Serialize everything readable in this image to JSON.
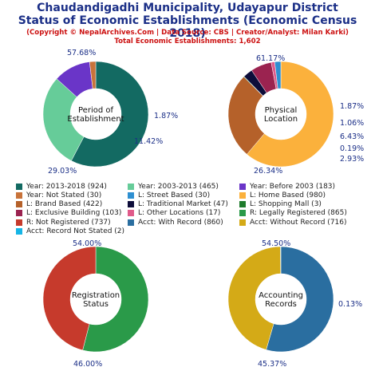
{
  "header": {
    "title_line1": "Chaudandigadhi Municipality, Udayapur District",
    "title_line2": "Status of Economic Establishments (Economic Census 2018)",
    "copyright": "(Copyright © NepalArchives.Com | Data Source: CBS | Creator/Analyst: Milan Karki)",
    "total": "Total Economic Establishments: 1,602"
  },
  "chart_data": [
    {
      "type": "pie",
      "title": "Period of Establishment",
      "center_label": [
        "Period of",
        "Establishment"
      ],
      "slices": [
        {
          "label": "Year: 2013-2018",
          "value": 924,
          "percent_label": "57.68%",
          "color": "#136a62"
        },
        {
          "label": "Year: 2003-2013",
          "value": 465,
          "percent_label": "29.03%",
          "color": "#66cc99"
        },
        {
          "label": "Year: Before 2003",
          "value": 183,
          "percent_label": "11.42%",
          "color": "#6a35c8"
        },
        {
          "label": "Year: Not Stated",
          "value": 30,
          "percent_label": "1.87%",
          "color": "#c8733a"
        }
      ]
    },
    {
      "type": "pie",
      "title": "Physical Location",
      "center_label": [
        "Physical",
        "Location"
      ],
      "slices": [
        {
          "label": "L: Home Based",
          "value": 980,
          "percent_label": "61.17%",
          "color": "#fbb13c"
        },
        {
          "label": "L: Brand Based",
          "value": 422,
          "percent_label": "26.34%",
          "color": "#b5612a"
        },
        {
          "label": "L: Shopping Mall",
          "value": 3,
          "percent_label": "0.19%",
          "color": "#1e7b2c"
        },
        {
          "label": "L: Traditional Market",
          "value": 47,
          "percent_label": "2.93%",
          "color": "#0d0d3a"
        },
        {
          "label": "L: Exclusive Building",
          "value": 103,
          "percent_label": "6.43%",
          "color": "#9b2350"
        },
        {
          "label": "L: Other Locations",
          "value": 17,
          "percent_label": "1.06%",
          "color": "#e05a8a"
        },
        {
          "label": "L: Street Based",
          "value": 30,
          "percent_label": "1.87%",
          "color": "#2e8fd1"
        }
      ]
    },
    {
      "type": "pie",
      "title": "Registration Status",
      "center_label": [
        "Registration",
        "Status"
      ],
      "slices": [
        {
          "label": "R: Legally Registered",
          "value": 865,
          "percent_label": "54.00%",
          "color": "#2a9a49"
        },
        {
          "label": "R: Not Registered",
          "value": 737,
          "percent_label": "46.00%",
          "color": "#c63a2c"
        }
      ]
    },
    {
      "type": "pie",
      "title": "Accounting Records",
      "center_label": [
        "Accounting",
        "Records"
      ],
      "slices": [
        {
          "label": "Acct: With Record",
          "value": 860,
          "percent_label": "54.50%",
          "color": "#2a6ea0"
        },
        {
          "label": "Acct: Without Record",
          "value": 716,
          "percent_label": "45.37%",
          "color": "#d4aa17"
        },
        {
          "label": "Acct: Record Not Stated",
          "value": 2,
          "percent_label": "0.13%",
          "color": "#15b5e6"
        }
      ]
    }
  ],
  "legend": {
    "items": [
      {
        "text": "Year: 2013-2018 (924)",
        "color": "#136a62"
      },
      {
        "text": "Year: 2003-2013 (465)",
        "color": "#66cc99"
      },
      {
        "text": "Year: Before 2003 (183)",
        "color": "#6a35c8"
      },
      {
        "text": "Year: Not Stated (30)",
        "color": "#c8733a"
      },
      {
        "text": "L: Street Based (30)",
        "color": "#2e8fd1"
      },
      {
        "text": "L: Home Based (980)",
        "color": "#fbb13c"
      },
      {
        "text": "L: Brand Based (422)",
        "color": "#b5612a"
      },
      {
        "text": "L: Traditional Market (47)",
        "color": "#0d0d3a"
      },
      {
        "text": "L: Shopping Mall (3)",
        "color": "#1e7b2c"
      },
      {
        "text": "L: Exclusive Building (103)",
        "color": "#9b2350"
      },
      {
        "text": "L: Other Locations (17)",
        "color": "#e05a8a"
      },
      {
        "text": "R: Legally Registered (865)",
        "color": "#2a9a49"
      },
      {
        "text": "R: Not Registered (737)",
        "color": "#c63a2c"
      },
      {
        "text": "Acct: With Record (860)",
        "color": "#2a6ea0"
      },
      {
        "text": "Acct: Without Record (716)",
        "color": "#d4aa17"
      },
      {
        "text": "Acct: Record Not Stated (2)",
        "color": "#15b5e6"
      }
    ]
  }
}
